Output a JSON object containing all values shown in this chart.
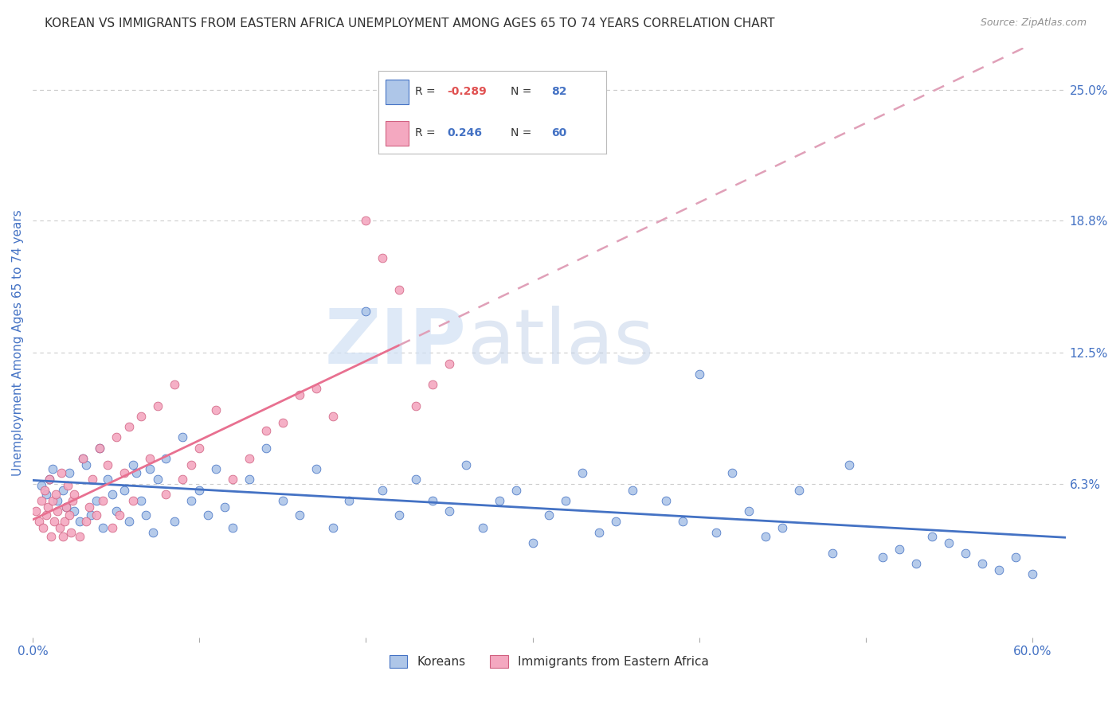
{
  "title": "KOREAN VS IMMIGRANTS FROM EASTERN AFRICA UNEMPLOYMENT AMONG AGES 65 TO 74 YEARS CORRELATION CHART",
  "source": "Source: ZipAtlas.com",
  "ylabel": "Unemployment Among Ages 65 to 74 years",
  "xlim": [
    0.0,
    0.62
  ],
  "ylim": [
    -0.01,
    0.27
  ],
  "xticks": [
    0.0,
    0.1,
    0.2,
    0.3,
    0.4,
    0.5,
    0.6
  ],
  "xticklabels": [
    "0.0%",
    "",
    "",
    "",
    "",
    "",
    "60.0%"
  ],
  "right_yticks": [
    0.063,
    0.125,
    0.188,
    0.25
  ],
  "right_yticklabels": [
    "6.3%",
    "12.5%",
    "18.8%",
    "25.0%"
  ],
  "grid_yticks": [
    0.063,
    0.125,
    0.188,
    0.25
  ],
  "legend_labels_bottom": [
    "Koreans",
    "Immigrants from Eastern Africa"
  ],
  "korean_scatter_color": "#aec6e8",
  "eastern_africa_scatter_color": "#f4a8c0",
  "korean_trend_color": "#4472c4",
  "eastern_africa_trend_color": "#e87090",
  "ea_dashed_color": "#e0a0b8",
  "watermark_zip": "ZIP",
  "watermark_atlas": "atlas",
  "watermark_color_zip": "#c8d8f0",
  "watermark_color_atlas": "#c8d8f0",
  "background_color": "#ffffff",
  "grid_color": "#cccccc",
  "title_color": "#303030",
  "source_color": "#909090",
  "axis_label_color": "#4472c4",
  "right_tick_color": "#4472c4",
  "legend_R_label_color": "#333333",
  "legend_value_color": "#4472c4",
  "legend_neg_color": "#e05050",
  "korean_x": [
    0.005,
    0.008,
    0.01,
    0.012,
    0.015,
    0.018,
    0.02,
    0.022,
    0.025,
    0.028,
    0.03,
    0.032,
    0.035,
    0.038,
    0.04,
    0.042,
    0.045,
    0.048,
    0.05,
    0.055,
    0.058,
    0.06,
    0.062,
    0.065,
    0.068,
    0.07,
    0.072,
    0.075,
    0.08,
    0.085,
    0.09,
    0.095,
    0.1,
    0.105,
    0.11,
    0.115,
    0.12,
    0.13,
    0.14,
    0.15,
    0.16,
    0.17,
    0.18,
    0.19,
    0.2,
    0.21,
    0.22,
    0.23,
    0.24,
    0.25,
    0.26,
    0.27,
    0.28,
    0.29,
    0.3,
    0.31,
    0.32,
    0.33,
    0.34,
    0.35,
    0.36,
    0.38,
    0.39,
    0.4,
    0.41,
    0.42,
    0.43,
    0.44,
    0.45,
    0.46,
    0.48,
    0.49,
    0.51,
    0.52,
    0.53,
    0.54,
    0.55,
    0.56,
    0.57,
    0.58,
    0.59,
    0.6
  ],
  "korean_y": [
    0.062,
    0.058,
    0.065,
    0.07,
    0.055,
    0.06,
    0.052,
    0.068,
    0.05,
    0.045,
    0.075,
    0.072,
    0.048,
    0.055,
    0.08,
    0.042,
    0.065,
    0.058,
    0.05,
    0.06,
    0.045,
    0.072,
    0.068,
    0.055,
    0.048,
    0.07,
    0.04,
    0.065,
    0.075,
    0.045,
    0.085,
    0.055,
    0.06,
    0.048,
    0.07,
    0.052,
    0.042,
    0.065,
    0.08,
    0.055,
    0.048,
    0.07,
    0.042,
    0.055,
    0.145,
    0.06,
    0.048,
    0.065,
    0.055,
    0.05,
    0.072,
    0.042,
    0.055,
    0.06,
    0.035,
    0.048,
    0.055,
    0.068,
    0.04,
    0.045,
    0.06,
    0.055,
    0.045,
    0.115,
    0.04,
    0.068,
    0.05,
    0.038,
    0.042,
    0.06,
    0.03,
    0.072,
    0.028,
    0.032,
    0.025,
    0.038,
    0.035,
    0.03,
    0.025,
    0.022,
    0.028,
    0.02
  ],
  "ea_x": [
    0.002,
    0.004,
    0.005,
    0.006,
    0.007,
    0.008,
    0.009,
    0.01,
    0.011,
    0.012,
    0.013,
    0.014,
    0.015,
    0.016,
    0.017,
    0.018,
    0.019,
    0.02,
    0.021,
    0.022,
    0.023,
    0.024,
    0.025,
    0.028,
    0.03,
    0.032,
    0.034,
    0.036,
    0.038,
    0.04,
    0.042,
    0.045,
    0.048,
    0.05,
    0.052,
    0.055,
    0.058,
    0.06,
    0.065,
    0.07,
    0.075,
    0.08,
    0.085,
    0.09,
    0.095,
    0.1,
    0.11,
    0.12,
    0.13,
    0.14,
    0.15,
    0.16,
    0.17,
    0.18,
    0.2,
    0.21,
    0.22,
    0.23,
    0.24,
    0.25
  ],
  "ea_y": [
    0.05,
    0.045,
    0.055,
    0.042,
    0.06,
    0.048,
    0.052,
    0.065,
    0.038,
    0.055,
    0.045,
    0.058,
    0.05,
    0.042,
    0.068,
    0.038,
    0.045,
    0.052,
    0.062,
    0.048,
    0.04,
    0.055,
    0.058,
    0.038,
    0.075,
    0.045,
    0.052,
    0.065,
    0.048,
    0.08,
    0.055,
    0.072,
    0.042,
    0.085,
    0.048,
    0.068,
    0.09,
    0.055,
    0.095,
    0.075,
    0.1,
    0.058,
    0.11,
    0.065,
    0.072,
    0.08,
    0.098,
    0.065,
    0.075,
    0.088,
    0.092,
    0.105,
    0.108,
    0.095,
    0.188,
    0.17,
    0.155,
    0.1,
    0.11,
    0.12
  ]
}
